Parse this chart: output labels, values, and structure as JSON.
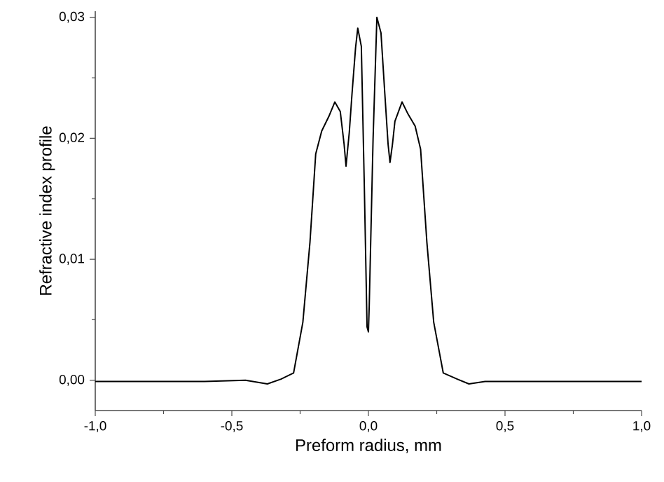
{
  "chart_data": {
    "type": "line",
    "xlabel": "Preform radius, mm",
    "ylabel": "Refractive index profile",
    "xlim": [
      -1.0,
      1.0
    ],
    "ylim": [
      -0.0025,
      0.0305
    ],
    "xticks": [
      {
        "value": -1.0,
        "label": "-1,0"
      },
      {
        "value": -0.75,
        "label": null
      },
      {
        "value": -0.5,
        "label": "-0,5"
      },
      {
        "value": -0.25,
        "label": null
      },
      {
        "value": 0.0,
        "label": "0,0"
      },
      {
        "value": 0.25,
        "label": null
      },
      {
        "value": 0.5,
        "label": "0,5"
      },
      {
        "value": 0.75,
        "label": null
      },
      {
        "value": 1.0,
        "label": "1,0"
      }
    ],
    "yticks": [
      {
        "value": 0.0,
        "label": "0,00"
      },
      {
        "value": 0.005,
        "label": null
      },
      {
        "value": 0.01,
        "label": "0,01"
      },
      {
        "value": 0.015,
        "label": null
      },
      {
        "value": 0.02,
        "label": "0,02"
      },
      {
        "value": 0.025,
        "label": null
      },
      {
        "value": 0.03,
        "label": "0,03"
      }
    ],
    "line_style": "solid",
    "series": [
      {
        "color": "#000000",
        "x": [
          -1.0,
          -0.8,
          -0.6,
          -0.45,
          -0.37,
          -0.32,
          -0.274,
          -0.24,
          -0.214,
          -0.193,
          -0.171,
          -0.145,
          -0.123,
          -0.103,
          -0.089,
          -0.082,
          -0.07,
          -0.06,
          -0.047,
          -0.039,
          -0.026,
          -0.015,
          -0.005,
          0.0,
          0.003,
          0.017,
          0.031,
          0.046,
          0.06,
          0.072,
          0.079,
          0.088,
          0.097,
          0.123,
          0.145,
          0.171,
          0.191,
          0.214,
          0.239,
          0.274,
          0.325,
          0.368,
          0.427,
          0.6,
          0.8,
          1.0
        ],
        "values": [
          -0.0001,
          -0.0001,
          -0.0001,
          0.0,
          -0.0003,
          0.0001,
          0.0006,
          0.0048,
          0.0114,
          0.0187,
          0.0206,
          0.0218,
          0.023,
          0.0222,
          0.0195,
          0.0177,
          0.0205,
          0.0237,
          0.0275,
          0.0291,
          0.0276,
          0.016,
          0.0044,
          0.004,
          0.0062,
          0.0199,
          0.03,
          0.0287,
          0.0237,
          0.0195,
          0.018,
          0.0195,
          0.0214,
          0.023,
          0.022,
          0.021,
          0.0191,
          0.0114,
          0.0048,
          0.0006,
          0.0001,
          -0.0003,
          -0.0001,
          -0.0001,
          -0.0001,
          -0.0001
        ]
      }
    ]
  }
}
